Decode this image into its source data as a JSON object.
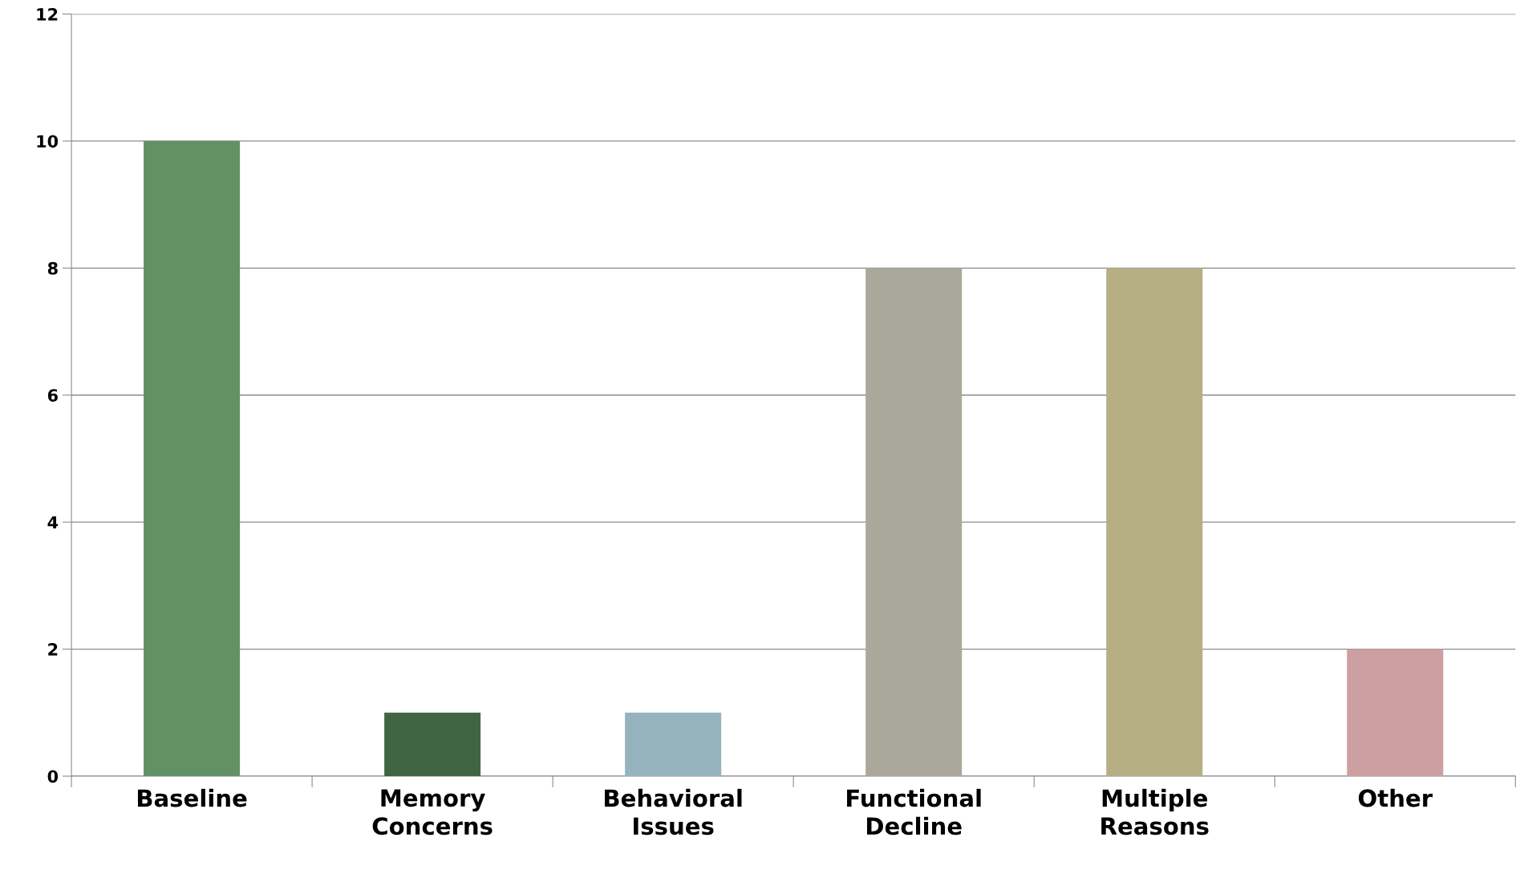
{
  "chart_data": {
    "type": "bar",
    "categories": [
      "Baseline",
      "Memory Concerns",
      "Behavioral Issues",
      "Functional Decline",
      "Multiple Reasons",
      "Other"
    ],
    "values": [
      10,
      1,
      1,
      8,
      8,
      2
    ],
    "colors": [
      "#629166",
      "#406641",
      "#95b3bc",
      "#aaa89a",
      "#b6ae84",
      "#cc9fa1"
    ],
    "ylim": [
      0,
      12
    ],
    "yticks": [
      0,
      2,
      4,
      6,
      8,
      10,
      12
    ],
    "grid": "y",
    "legend": false
  }
}
